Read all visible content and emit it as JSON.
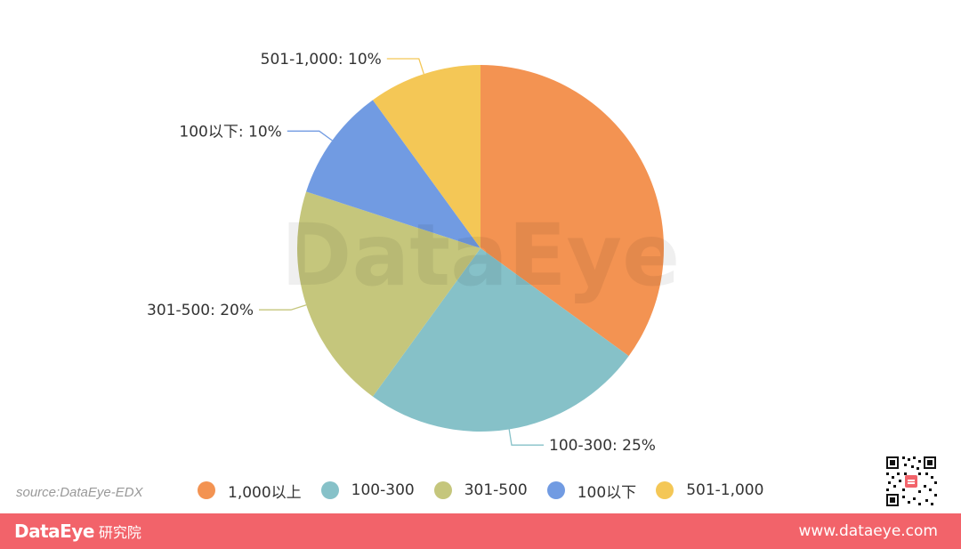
{
  "chart_data": {
    "type": "pie",
    "slices": [
      {
        "name": "1,000以上",
        "value": 35,
        "label": "",
        "color": "#f39352"
      },
      {
        "name": "100-300",
        "value": 25,
        "label": "100-300: 25%",
        "color": "#86c1c8"
      },
      {
        "name": "301-500",
        "value": 20,
        "label": "301-500: 20%",
        "color": "#c5c67c"
      },
      {
        "name": "100以下",
        "value": 10,
        "label": "100以下: 10%",
        "color": "#719be2"
      },
      {
        "name": "501-1,000",
        "value": 10,
        "label": "501-1,000: 10%",
        "color": "#f4c756"
      }
    ],
    "legend_position": "bottom"
  },
  "watermark": "DataEye",
  "source": "source:DataEye-EDX",
  "footer": {
    "brand": "DataEye",
    "brand_sub": "研究院",
    "website": "www.dataeye.com",
    "color": "#f2636a"
  }
}
